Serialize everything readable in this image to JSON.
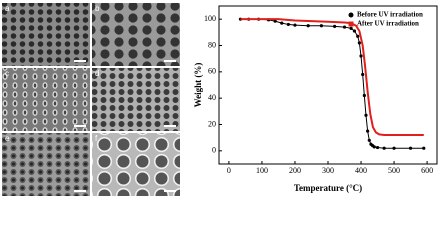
{
  "image_panels": [
    {
      "label": "a"
    },
    {
      "label": "b"
    },
    {
      "label": "c"
    },
    {
      "label": "d"
    },
    {
      "label": "e"
    },
    {
      "label": "f"
    }
  ],
  "chart_data": {
    "type": "line",
    "xlabel": "Temperature (°C)",
    "ylabel": "Weight (%)",
    "xlim": [
      -30,
      630
    ],
    "xticks": [
      0,
      100,
      200,
      300,
      400,
      500,
      600
    ],
    "ylim": [
      -10,
      110
    ],
    "yticks": [
      0,
      20,
      40,
      60,
      80,
      100
    ],
    "legend": "upper right",
    "series": [
      {
        "name": "Before UV irradiation",
        "color": "#000000",
        "marker": "circle",
        "x": [
          35,
          60,
          90,
          120,
          140,
          160,
          180,
          200,
          240,
          280,
          320,
          350,
          370,
          380,
          390,
          395,
          400,
          405,
          410,
          415,
          420,
          425,
          430,
          435,
          440,
          450,
          470,
          500,
          550,
          590
        ],
        "values": [
          100,
          100,
          100,
          99.5,
          98.5,
          97,
          96,
          95.5,
          95,
          95,
          94.5,
          94,
          93,
          91,
          87,
          82,
          72,
          58,
          42,
          27,
          15,
          8,
          5,
          4,
          3,
          2.5,
          2,
          2,
          2,
          2
        ]
      },
      {
        "name": "After UV irradiation",
        "color": "#e0201c",
        "marker": "square",
        "x": [
          35,
          100,
          150,
          200,
          250,
          300,
          350,
          370,
          385,
          395,
          405,
          412,
          420,
          428,
          436,
          445,
          455,
          470,
          500,
          550,
          590
        ],
        "values": [
          100,
          100,
          100,
          99,
          98.5,
          98,
          97.5,
          97,
          95,
          91,
          80,
          65,
          45,
          28,
          18,
          14,
          12.5,
          12,
          12,
          12,
          12
        ]
      }
    ]
  }
}
